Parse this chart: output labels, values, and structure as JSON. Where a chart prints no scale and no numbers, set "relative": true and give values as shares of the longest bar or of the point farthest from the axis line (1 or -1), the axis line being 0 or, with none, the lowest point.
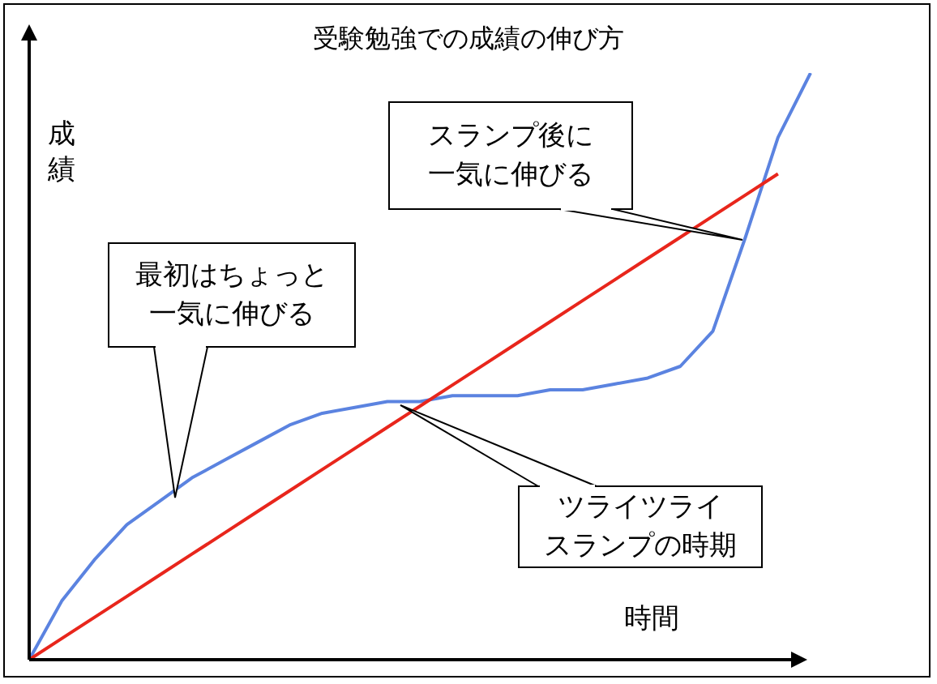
{
  "chart_data": {
    "type": "line",
    "title": "受験勉強での成績の伸び方",
    "xlabel": "時間",
    "ylabel": "成績",
    "relative": true,
    "marker": "none",
    "line_style": "solid",
    "categories": [
      null,
      null,
      null,
      null,
      null,
      null,
      null,
      null,
      null,
      null,
      null,
      null,
      null,
      null,
      null,
      null,
      null,
      null,
      null,
      null,
      null,
      null,
      null,
      null,
      null
    ],
    "series": [
      {
        "color": "#5b83e0",
        "values": [
          0,
          0.1,
          0.17,
          0.23,
          0.27,
          0.31,
          0.34,
          0.37,
          0.4,
          0.42,
          0.43,
          0.44,
          0.44,
          0.45,
          0.45,
          0.45,
          0.46,
          0.46,
          0.47,
          0.48,
          0.5,
          0.56,
          0.72,
          0.89,
          1
        ]
      },
      {
        "color": "#e8261c",
        "values": [
          0,
          0.036,
          0.072,
          0.108,
          0.144,
          0.18,
          0.216,
          0.252,
          0.288,
          0.324,
          0.36,
          0.396,
          0.432,
          0.468,
          0.504,
          0.54,
          0.576,
          0.612,
          0.648,
          0.684,
          0.72,
          0.756,
          0.792,
          0.828,
          null
        ]
      }
    ],
    "annotations": [
      "最初はちょっと一気に伸びる",
      "スランプ後に一気に伸びる",
      "ツライツライスランプの時期"
    ]
  }
}
